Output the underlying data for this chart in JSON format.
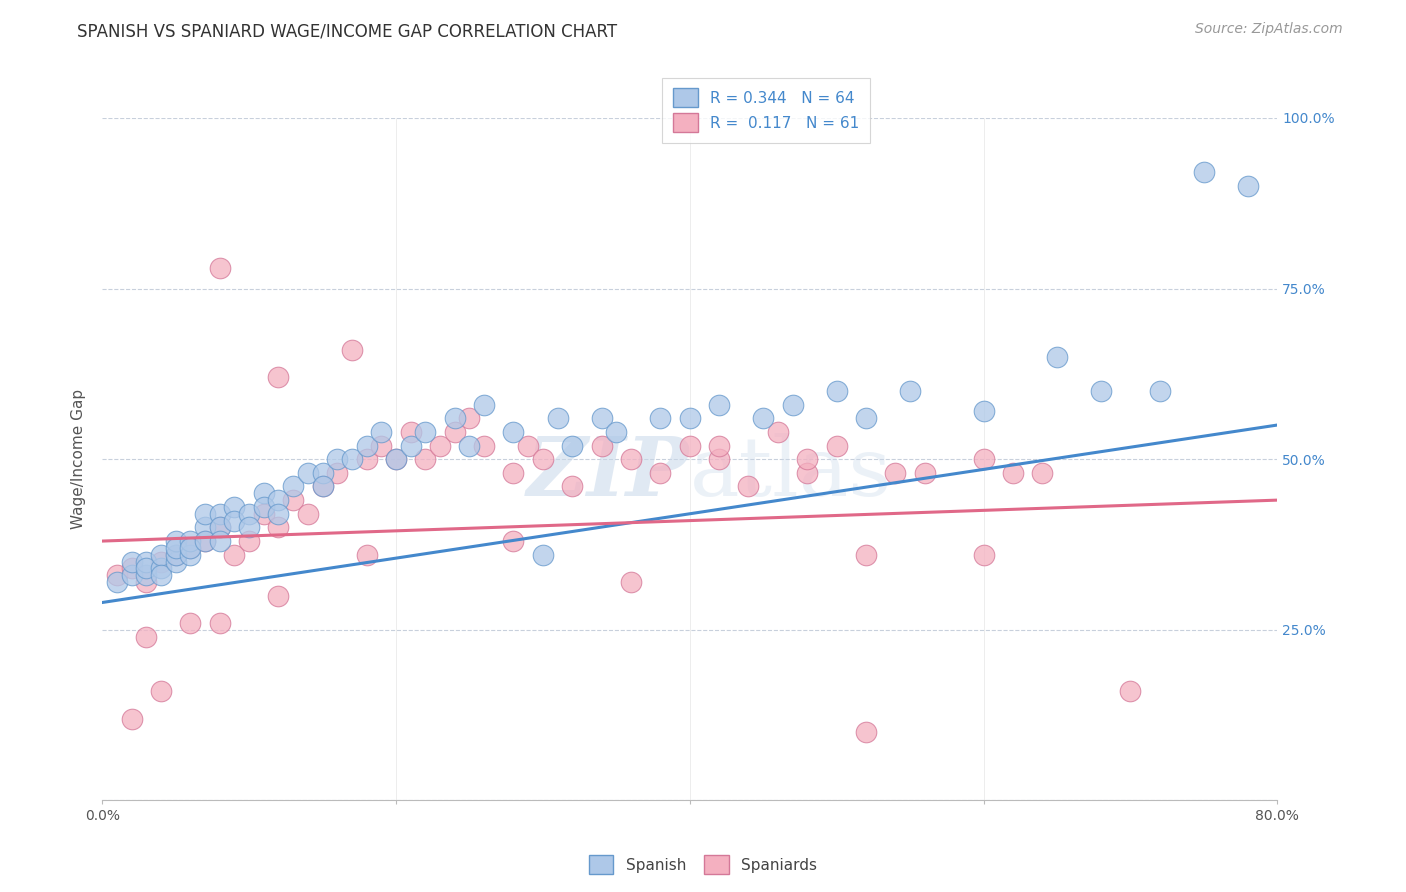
{
  "title": "SPANISH VS SPANIARD WAGE/INCOME GAP CORRELATION CHART",
  "source_text": "Source: ZipAtlas.com",
  "ylabel": "Wage/Income Gap",
  "xmin": 0.0,
  "xmax": 80.0,
  "ymin": 0.0,
  "ymax": 100.0,
  "yticks": [
    0.0,
    25.0,
    50.0,
    75.0,
    100.0
  ],
  "ytick_labels": [
    "",
    "25.0%",
    "50.0%",
    "75.0%",
    "100.0%"
  ],
  "background_color": "#ffffff",
  "grid_color": "#c8d0dc",
  "watermark_color": "#c8d8ea",
  "blue_face": "#aec8e8",
  "blue_edge": "#6699cc",
  "pink_face": "#f4b0c0",
  "pink_edge": "#d47898",
  "blue_line_color": "#4488cc",
  "pink_line_color": "#e06888",
  "title_color": "#333333",
  "source_color": "#999999",
  "ylabel_color": "#555555",
  "tick_color": "#4488cc",
  "R_blue": 0.344,
  "N_blue": 64,
  "R_pink": 0.117,
  "N_pink": 61,
  "blue_line_y0": 29.0,
  "blue_line_y1": 55.0,
  "pink_line_y0": 38.0,
  "pink_line_y1": 44.0,
  "blue_x": [
    1,
    2,
    2,
    3,
    3,
    3,
    4,
    4,
    4,
    5,
    5,
    5,
    5,
    6,
    6,
    6,
    7,
    7,
    7,
    8,
    8,
    8,
    9,
    9,
    10,
    10,
    11,
    11,
    12,
    12,
    13,
    14,
    15,
    15,
    16,
    17,
    18,
    19,
    20,
    21,
    22,
    24,
    25,
    26,
    28,
    30,
    31,
    32,
    34,
    35,
    38,
    40,
    42,
    45,
    47,
    50,
    52,
    55,
    60,
    65,
    68,
    72,
    75,
    78
  ],
  "blue_y": [
    32,
    33,
    35,
    33,
    35,
    34,
    34,
    36,
    33,
    35,
    36,
    38,
    37,
    36,
    38,
    37,
    40,
    38,
    42,
    42,
    40,
    38,
    43,
    41,
    42,
    40,
    45,
    43,
    44,
    42,
    46,
    48,
    48,
    46,
    50,
    50,
    52,
    54,
    50,
    52,
    54,
    56,
    52,
    58,
    54,
    36,
    56,
    52,
    56,
    54,
    56,
    56,
    58,
    56,
    58,
    60,
    56,
    60,
    57,
    65,
    60,
    60,
    92,
    90
  ],
  "pink_x": [
    1,
    2,
    3,
    4,
    5,
    6,
    7,
    8,
    8,
    9,
    10,
    11,
    12,
    12,
    13,
    14,
    15,
    16,
    17,
    18,
    19,
    20,
    21,
    22,
    23,
    24,
    25,
    26,
    28,
    29,
    30,
    32,
    34,
    36,
    38,
    40,
    42,
    44,
    46,
    48,
    50,
    52,
    54,
    56,
    60,
    62,
    64,
    48,
    36,
    28,
    18,
    12,
    8,
    6,
    4,
    3,
    2,
    42,
    52,
    60,
    70
  ],
  "pink_y": [
    33,
    34,
    32,
    35,
    36,
    37,
    38,
    40,
    78,
    36,
    38,
    42,
    40,
    62,
    44,
    42,
    46,
    48,
    66,
    50,
    52,
    50,
    54,
    50,
    52,
    54,
    56,
    52,
    48,
    52,
    50,
    46,
    52,
    50,
    48,
    52,
    50,
    46,
    54,
    48,
    52,
    10,
    48,
    48,
    50,
    48,
    48,
    50,
    32,
    38,
    36,
    30,
    26,
    26,
    16,
    24,
    12,
    52,
    36,
    36,
    16
  ],
  "title_fontsize": 12,
  "source_fontsize": 10,
  "axis_label_fontsize": 11,
  "tick_fontsize": 10,
  "legend_fontsize": 11
}
